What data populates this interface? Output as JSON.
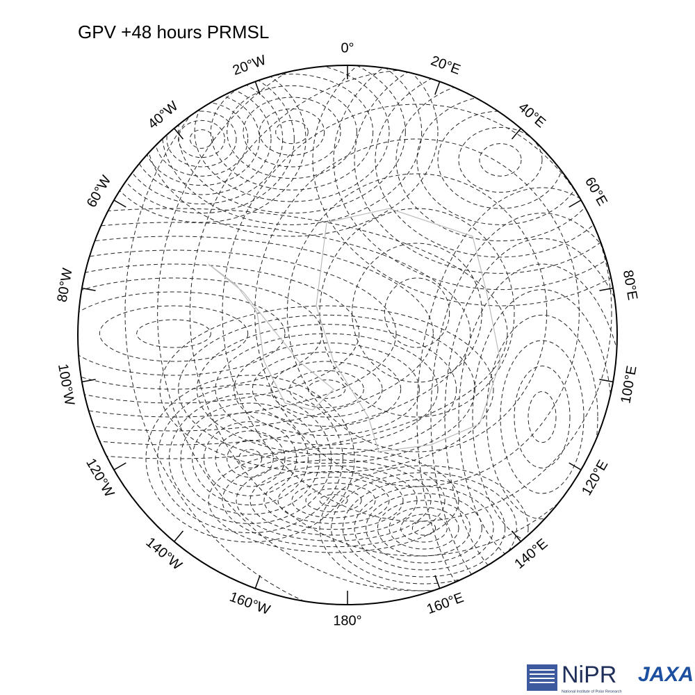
{
  "title": "GPV +48 hours PRMSL",
  "longitude_labels": [
    "0°",
    "20°E",
    "40°E",
    "60°E",
    "80°E",
    "100°E",
    "120°E",
    "140°E",
    "160°E",
    "180°",
    "160°W",
    "140°W",
    "120°W",
    "100°W",
    "80°W",
    "60°W",
    "40°W",
    "20°W"
  ],
  "logos": {
    "nipr": "NiPR",
    "nipr_full": "National Institute of Polar Research",
    "jaxa": "JAXA"
  }
}
